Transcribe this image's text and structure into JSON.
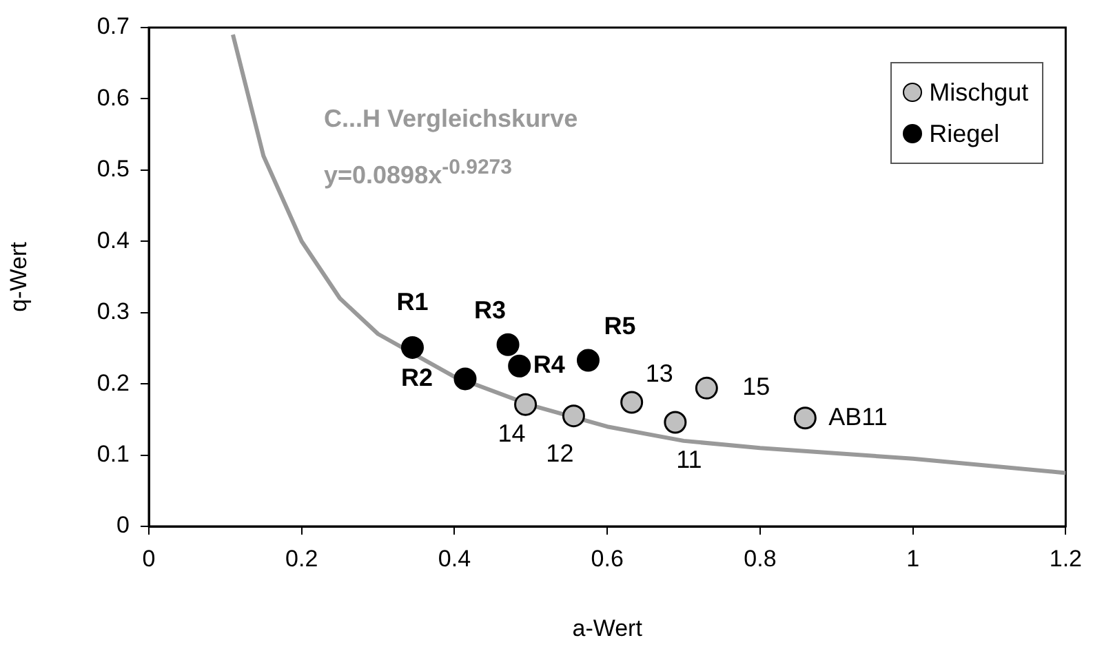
{
  "chart_data": {
    "type": "scatter",
    "xlabel": "a-Wert",
    "ylabel": "q-Wert",
    "xlim": [
      0,
      1.2
    ],
    "xticks": [
      0,
      0.2,
      0.4,
      0.6,
      0.8,
      1,
      1.2
    ],
    "ylim": [
      0,
      0.7
    ],
    "yticks": [
      0,
      0.1,
      0.2,
      0.3,
      0.4,
      0.5,
      0.6,
      0.7
    ],
    "legend": "top right",
    "marker": "circle",
    "annotations": [
      "C...H Vergleichskurve",
      "y=0.0898x$^{-0.9273}$",
      {
        "text": "R1",
        "x": 0.345,
        "y": 0.251
      },
      {
        "text": "R2",
        "x": 0.414,
        "y": 0.207
      },
      {
        "text": "R3",
        "x": 0.47,
        "y": 0.255
      },
      {
        "text": "R4",
        "x": 0.485,
        "y": 0.225
      },
      {
        "text": "R5",
        "x": 0.575,
        "y": 0.233
      },
      {
        "text": "14",
        "x": 0.493,
        "y": 0.171
      },
      {
        "text": "12",
        "x": 0.556,
        "y": 0.155
      },
      {
        "text": "13",
        "x": 0.632,
        "y": 0.174
      },
      {
        "text": "11",
        "x": 0.689,
        "y": 0.146
      },
      {
        "text": "15",
        "x": 0.73,
        "y": 0.194
      },
      {
        "text": "AB11",
        "x": 0.859,
        "y": 0.152
      }
    ],
    "series": [
      {
        "name": "Mischgut",
        "color": "#c0c0c0",
        "x": [
          0.493,
          0.556,
          0.632,
          0.689,
          0.73,
          0.859
        ],
        "values": [
          0.171,
          0.155,
          0.174,
          0.146,
          0.194,
          0.152
        ]
      },
      {
        "name": "Riegel",
        "color": "#000000",
        "x": [
          0.345,
          0.414,
          0.47,
          0.485,
          0.575
        ],
        "values": [
          0.251,
          0.207,
          0.255,
          0.225,
          0.233
        ]
      },
      {
        "type": "line",
        "marker": "none",
        "color": "#999999",
        "x": [
          0.11,
          0.15,
          0.2,
          0.25,
          0.3,
          0.35,
          0.4,
          0.5,
          0.6,
          0.7,
          0.8,
          1.0,
          1.2
        ],
        "values": [
          0.69,
          0.52,
          0.4,
          0.32,
          0.27,
          0.24,
          0.21,
          0.17,
          0.14,
          0.12,
          0.11,
          0.095,
          0.075
        ]
      }
    ]
  }
}
